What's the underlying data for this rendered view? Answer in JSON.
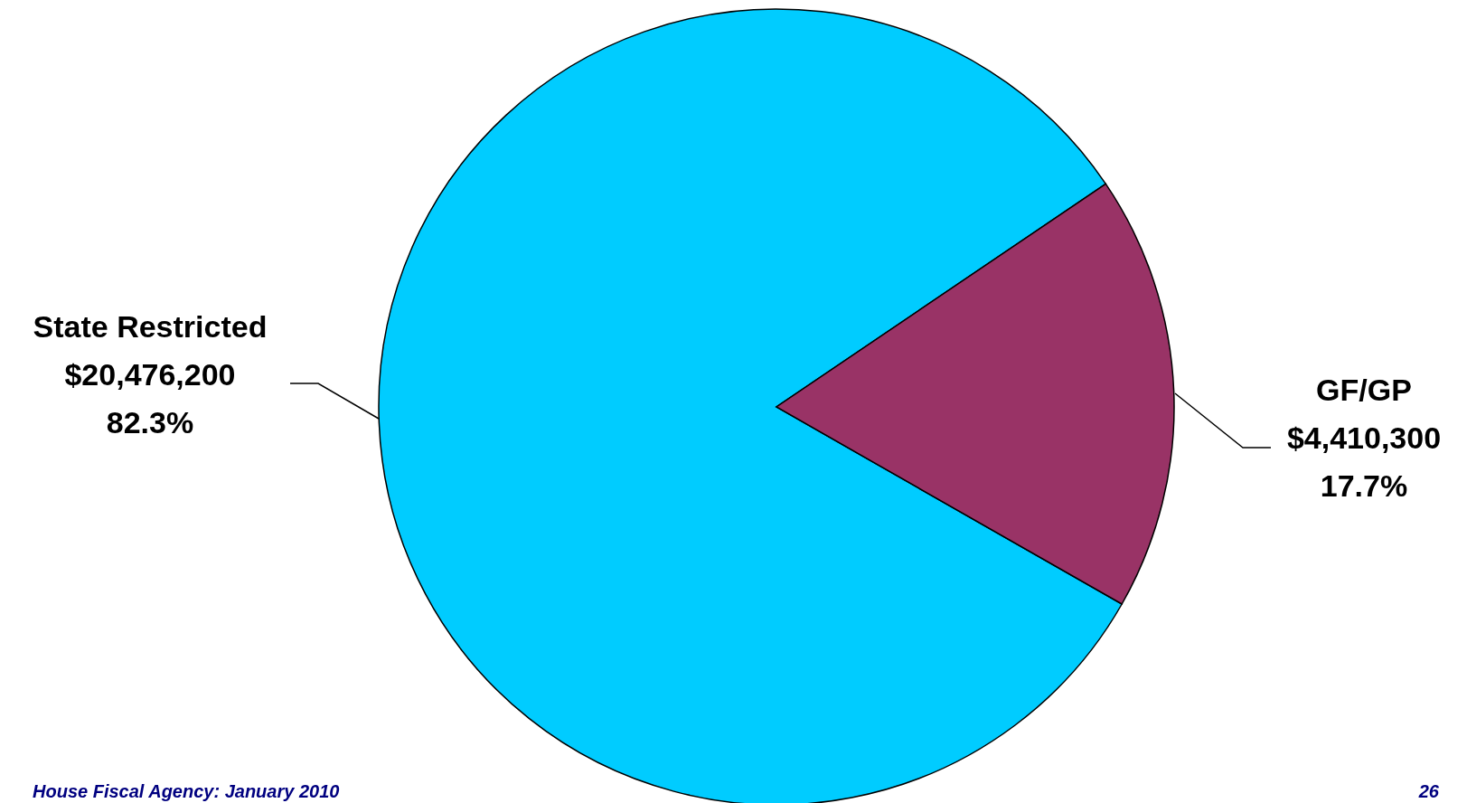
{
  "chart_data": {
    "type": "pie",
    "categories": [
      "State Restricted",
      "GF/GP"
    ],
    "values": [
      20476200,
      4410300
    ],
    "colors": [
      "#00ccff",
      "#993366"
    ],
    "value_labels": [
      "$20,476,200\n82.3%",
      "$4,410,300\n17.7%"
    ],
    "annotations": [
      "House Fiscal Agency:   January 2010",
      "26"
    ]
  }
}
